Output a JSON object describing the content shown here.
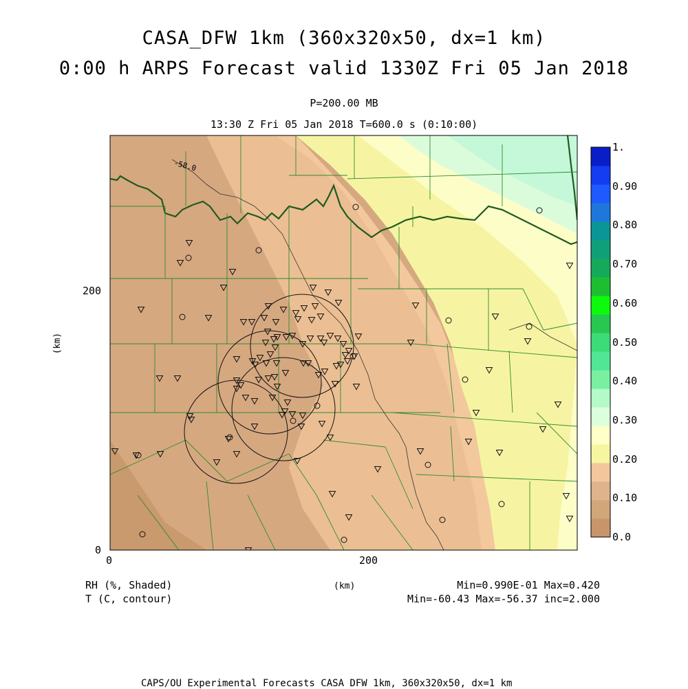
{
  "title": {
    "line1": "CASA_DFW 1km (360x320x50, dx=1 km)",
    "line2": "0:00 h ARPS Forecast valid 1330Z Fri 05 Jan 2018"
  },
  "subtitle": {
    "level": "P=200.00 MB",
    "time": "13:30 Z Fri 05 Jan 2018   T=600.0 s (0:10:00)"
  },
  "axes": {
    "x_ticks": [
      "0",
      "200"
    ],
    "y_ticks": [
      "0",
      "200"
    ],
    "x_unit": "(km)",
    "y_unit": "(km)"
  },
  "colorbar": {
    "labels": [
      "0.0",
      "0.10",
      "0.20",
      "0.30",
      "0.40",
      "0.50",
      "0.60",
      "0.70",
      "0.80",
      "0.90",
      "1."
    ],
    "colors": [
      "#c8956a",
      "#d2a67b",
      "#dfb48c",
      "#f3c79b",
      "#f6f6a0",
      "#ffffc8",
      "#dcffdc",
      "#b4fac8",
      "#78f0a0",
      "#50e696",
      "#3cdc78",
      "#28c850",
      "#0cfa0c",
      "#1ebe32",
      "#14aa5a",
      "#0fa078",
      "#0a9696",
      "#1e78dc",
      "#1e5aff",
      "#143cf0",
      "#0a1ec8"
    ]
  },
  "contour_label": "-58.0",
  "legend": {
    "rh": "RH (%, Shaded)",
    "t": "T (C, contour)",
    "rh_range": "Min=0.990E-01 Max=0.420",
    "t_range": "Min=-60.43 Max=-56.37 inc=2.000"
  },
  "footer": "CAPS/OU Experimental Forecasts  CASA DFW 1km, 360x320x50, dx=1 km",
  "chart_data": {
    "type": "heatmap",
    "variable_shaded": "RH",
    "variable_contour": "T",
    "xlim": [
      0,
      360
    ],
    "ylim": [
      0,
      320
    ],
    "rh_min": 0.099,
    "rh_max": 0.42,
    "t_min": -60.43,
    "t_max": -56.37,
    "t_inc": 2.0,
    "contours_labeled": [
      -58.0
    ],
    "radar_ranges": [
      {
        "x": 148,
        "y": 167,
        "r": 40
      },
      {
        "x": 119,
        "y": 146,
        "r": 40
      },
      {
        "x": 135,
        "y": 114,
        "r": 40
      },
      {
        "x": 93,
        "y": 96,
        "r": 40
      }
    ]
  }
}
